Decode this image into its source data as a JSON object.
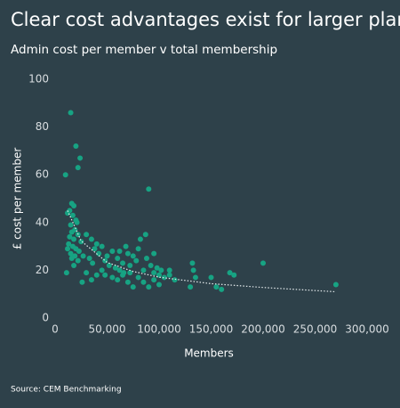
{
  "chart_data": {
    "type": "scatter",
    "title": "Clear cost advantages exist for larger plans",
    "subtitle": "Admin cost per member v total membership",
    "x_label": "Members",
    "y_label": "£ cost per member",
    "source": "Source: CEM Benchmarking",
    "color": "#17a383",
    "x": [
      15000,
      20000,
      24000,
      22000,
      10000,
      16000,
      18000,
      14000,
      12000,
      17000,
      20000,
      21000,
      15000,
      19000,
      16000,
      22000,
      14000,
      18000,
      25000,
      13000,
      17000,
      20000,
      23000,
      15000,
      19000,
      27000,
      16000,
      22000,
      11000,
      18000,
      30000,
      35000,
      40000,
      38000,
      45000,
      42000,
      33000,
      36000,
      48000,
      50000,
      55000,
      52000,
      58000,
      60000,
      62000,
      65000,
      68000,
      70000,
      72000,
      75000,
      78000,
      80000,
      82000,
      85000,
      88000,
      90000,
      92000,
      95000,
      98000,
      100000,
      102000,
      105000,
      110000,
      115000,
      30000,
      40000,
      45000,
      55000,
      65000,
      70000,
      75000,
      85000,
      90000,
      95000,
      100000,
      60000,
      80000,
      132000,
      133000,
      135000,
      130000,
      150000,
      155000,
      160000,
      168000,
      172000,
      200000,
      270000,
      12000,
      26000,
      35000,
      48000,
      72000,
      87000,
      95000,
      110000,
      62000,
      66000
    ],
    "values": [
      86,
      72,
      67,
      63,
      60,
      48,
      47,
      45,
      44,
      43,
      41,
      40,
      39,
      37,
      36,
      35,
      34,
      33,
      32,
      31,
      30,
      29,
      28,
      27,
      26,
      26,
      25,
      24,
      19,
      22,
      35,
      33,
      31,
      29,
      30,
      27,
      25,
      23,
      24,
      26,
      28,
      22,
      21,
      25,
      20,
      23,
      30,
      27,
      22,
      26,
      24,
      29,
      33,
      20,
      25,
      54,
      22,
      19,
      21,
      18,
      20,
      17,
      18,
      16,
      19,
      18,
      20,
      17,
      18,
      15,
      13,
      15,
      13,
      16,
      14,
      16,
      17,
      23,
      20,
      17,
      13,
      17,
      13,
      12,
      19,
      18,
      23,
      14,
      29,
      15,
      16,
      18,
      19,
      35,
      27,
      20,
      28,
      19
    ],
    "trend": {
      "x": [
        12000,
        25000,
        50000,
        75000,
        100000,
        150000,
        200000,
        270000
      ],
      "y": [
        45,
        32.3,
        23.3,
        19.5,
        17.1,
        14.4,
        12.8,
        11
      ]
    },
    "xlim": [
      0,
      300000
    ],
    "xticks": [
      0,
      {
        "value": 50000,
        "label": "50,000"
      },
      {
        "value": 100000,
        "label": "100,000"
      },
      {
        "value": 150000,
        "label": "150,000"
      },
      {
        "value": 200000,
        "label": "200,000"
      },
      {
        "value": 250000,
        "label": "250,000"
      },
      {
        "value": 300000,
        "label": "300,000"
      }
    ],
    "ylim": [
      0,
      100
    ],
    "yticks": [
      0,
      20,
      40,
      60,
      80,
      100
    ]
  }
}
